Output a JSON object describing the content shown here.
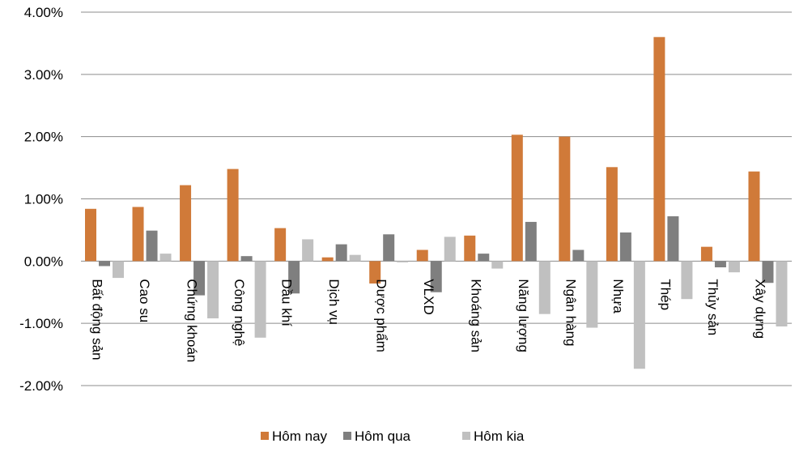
{
  "chart_data": {
    "type": "bar",
    "title": "",
    "xlabel": "",
    "ylabel": "",
    "ylim": [
      -2.0,
      4.0
    ],
    "y_ticks": [
      "-2.00%",
      "-1.00%",
      "0.00%",
      "1.00%",
      "2.00%",
      "3.00%",
      "4.00%"
    ],
    "grid": true,
    "legend_position": "bottom",
    "categories": [
      "Bất động sản",
      "Cao su",
      "Chứng khoán",
      "Công nghệ",
      "Dầu khí",
      "Dịch vụ",
      "Dược phẩm",
      "VLXD",
      "Khoáng sản",
      "Năng lượng",
      "Ngân hàng",
      "Nhựa",
      "Thép",
      "Thủy sản",
      "Xây dựng"
    ],
    "series": [
      {
        "name": "Hôm nay",
        "color": "#D07A39",
        "values": [
          0.84,
          0.87,
          1.22,
          1.48,
          0.53,
          0.06,
          -0.36,
          0.18,
          0.41,
          2.03,
          2.0,
          1.51,
          3.6,
          0.23,
          1.44
        ]
      },
      {
        "name": "Hôm qua",
        "color": "#7F7F7F",
        "values": [
          -0.08,
          0.49,
          -0.55,
          0.08,
          -0.52,
          0.27,
          0.43,
          -0.5,
          0.12,
          0.63,
          0.18,
          0.46,
          0.72,
          -0.1,
          -0.35
        ]
      },
      {
        "name": "Hôm kia",
        "color": "#C0C0C0",
        "values": [
          -0.27,
          0.12,
          -0.92,
          -1.23,
          0.35,
          0.1,
          -0.02,
          0.39,
          -0.12,
          -0.85,
          -1.07,
          -1.73,
          -0.61,
          -0.18,
          -1.05
        ]
      }
    ]
  }
}
